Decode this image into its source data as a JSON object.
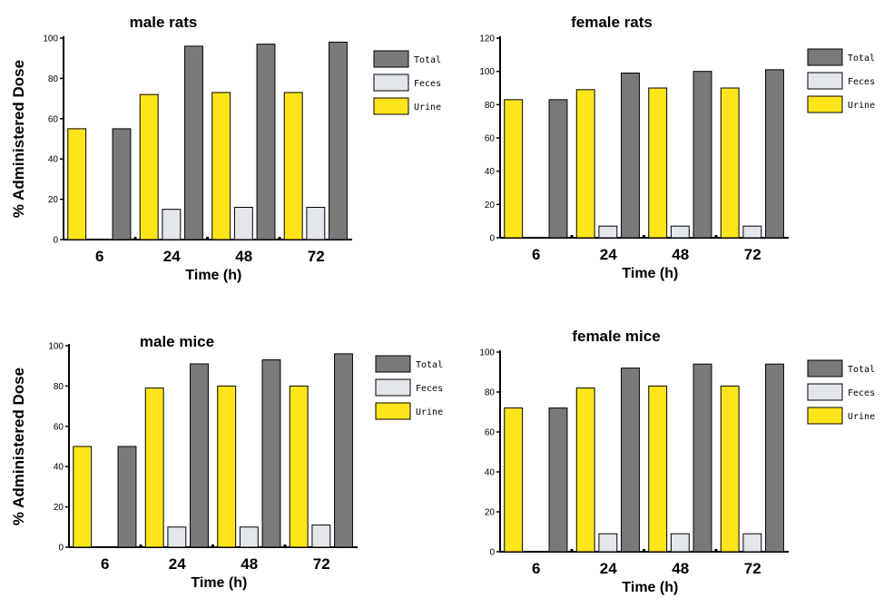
{
  "colors": {
    "Total": "#7a7a7a",
    "Feces": "#e3e6ea",
    "Urine": "#ffe51a",
    "axis": "#000000"
  },
  "chart_data": [
    {
      "type": "bar",
      "title": "male rats",
      "xlabel": "Time (h)",
      "ylabel": "% Administered Dose",
      "categories": [
        "6",
        "24",
        "48",
        "72"
      ],
      "ylim": [
        0,
        100
      ],
      "yticks": [
        0,
        20,
        40,
        60,
        80,
        100
      ],
      "series": [
        {
          "name": "Urine",
          "values": [
            55,
            72,
            73,
            73
          ]
        },
        {
          "name": "Feces",
          "values": [
            0,
            15,
            16,
            16
          ]
        },
        {
          "name": "Total",
          "values": [
            55,
            96,
            97,
            98
          ]
        }
      ],
      "legend": [
        "Total",
        "Feces",
        "Urine"
      ],
      "legend_position": "right"
    },
    {
      "type": "bar",
      "title": "female rats",
      "xlabel": "Time (h)",
      "ylabel": "",
      "categories": [
        "6",
        "24",
        "48",
        "72"
      ],
      "ylim": [
        0,
        120
      ],
      "yticks": [
        0,
        20,
        40,
        60,
        80,
        100,
        120
      ],
      "series": [
        {
          "name": "Urine",
          "values": [
            83,
            89,
            90,
            90
          ]
        },
        {
          "name": "Feces",
          "values": [
            0,
            7,
            7,
            7
          ]
        },
        {
          "name": "Total",
          "values": [
            83,
            99,
            100,
            101
          ]
        }
      ],
      "legend": [
        "Total",
        "Feces",
        "Urine"
      ],
      "legend_position": "right"
    },
    {
      "type": "bar",
      "title": "male mice",
      "xlabel": "Time (h)",
      "ylabel": "% Administered Dose",
      "categories": [
        "6",
        "24",
        "48",
        "72"
      ],
      "ylim": [
        0,
        100
      ],
      "yticks": [
        0,
        20,
        40,
        60,
        80,
        100
      ],
      "series": [
        {
          "name": "Urine",
          "values": [
            50,
            79,
            80,
            80
          ]
        },
        {
          "name": "Feces",
          "values": [
            0,
            10,
            10,
            11
          ]
        },
        {
          "name": "Total",
          "values": [
            50,
            91,
            93,
            96
          ]
        }
      ],
      "legend": [
        "Total",
        "Feces",
        "Urine"
      ],
      "legend_position": "right"
    },
    {
      "type": "bar",
      "title": "female mice",
      "xlabel": "Time (h)",
      "ylabel": "",
      "categories": [
        "6",
        "24",
        "48",
        "72"
      ],
      "ylim": [
        0,
        100
      ],
      "yticks": [
        0,
        20,
        40,
        60,
        80,
        100
      ],
      "series": [
        {
          "name": "Urine",
          "values": [
            72,
            82,
            83,
            83
          ]
        },
        {
          "name": "Feces",
          "values": [
            0,
            9,
            9,
            9
          ]
        },
        {
          "name": "Total",
          "values": [
            72,
            92,
            94,
            94
          ]
        }
      ],
      "legend": [
        "Total",
        "Feces",
        "Urine"
      ],
      "legend_position": "right"
    }
  ]
}
